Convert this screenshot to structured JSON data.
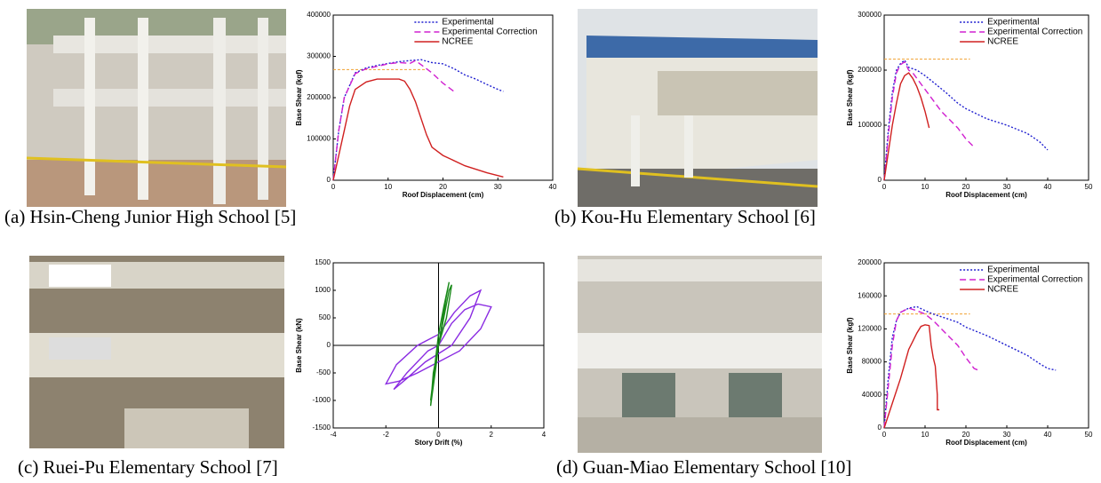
{
  "chart_data": [
    {
      "type": "line",
      "caption": "(a) Hsin-Cheng Junior High School [5]",
      "x_label": "Roof Displacement (cm)",
      "y_label": "Base Shear (kgf)",
      "xlim": [
        0,
        40
      ],
      "xticks": [
        0,
        10,
        20,
        30,
        40
      ],
      "ylim": [
        0,
        400000
      ],
      "yticks": [
        0,
        100000,
        200000,
        300000,
        400000
      ],
      "reference_line": {
        "value": 268000,
        "color": "#f0a030"
      },
      "series": [
        {
          "name": "Experimental",
          "color": "#2020d0",
          "style": "dotted",
          "x": [
            0,
            1,
            2,
            4,
            6,
            8,
            10,
            12,
            14,
            16,
            18,
            20,
            22,
            24,
            26,
            28,
            30,
            31
          ],
          "values": [
            0,
            120000,
            200000,
            260000,
            272000,
            278000,
            283000,
            287000,
            290000,
            292000,
            285000,
            282000,
            270000,
            255000,
            245000,
            232000,
            220000,
            215000
          ]
        },
        {
          "name": "Experimental Correction",
          "color": "#d020d0",
          "style": "dashed",
          "x": [
            0,
            1,
            2,
            4,
            6,
            8,
            10,
            12,
            14,
            15,
            16,
            18,
            20,
            22
          ],
          "values": [
            0,
            120000,
            200000,
            258000,
            270000,
            276000,
            282000,
            285000,
            283000,
            290000,
            280000,
            260000,
            235000,
            215000
          ]
        },
        {
          "name": "NCREE",
          "color": "#d02020",
          "style": "solid",
          "x": [
            0,
            1,
            2,
            3,
            4,
            6,
            8,
            10,
            12,
            13,
            14,
            15,
            16,
            17,
            18,
            20,
            24,
            28,
            31
          ],
          "values": [
            0,
            60000,
            120000,
            180000,
            220000,
            238000,
            245000,
            245000,
            245000,
            240000,
            220000,
            190000,
            150000,
            110000,
            80000,
            60000,
            35000,
            18000,
            8000
          ]
        }
      ]
    },
    {
      "type": "line",
      "caption": "(b) Kou-Hu Elementary School [6]",
      "x_label": "Roof Displacement (cm)",
      "y_label": "Base Shear (kgf)",
      "xlim": [
        0,
        50
      ],
      "xticks": [
        0,
        10,
        20,
        30,
        40,
        50
      ],
      "ylim": [
        0,
        300000
      ],
      "yticks": [
        0,
        100000,
        200000,
        300000
      ],
      "reference_line": {
        "value": 220000,
        "color": "#f0a030"
      },
      "series": [
        {
          "name": "Experimental",
          "color": "#2020d0",
          "style": "dotted",
          "x": [
            0,
            1,
            2,
            3,
            4,
            5,
            6,
            8,
            10,
            12,
            15,
            18,
            20,
            25,
            30,
            35,
            38,
            40
          ],
          "values": [
            0,
            90000,
            160000,
            200000,
            212000,
            218000,
            205000,
            200000,
            190000,
            178000,
            160000,
            140000,
            130000,
            112000,
            100000,
            85000,
            70000,
            55000
          ]
        },
        {
          "name": "Experimental Correction",
          "color": "#d020d0",
          "style": "dashed",
          "x": [
            0,
            1,
            2,
            3,
            4,
            5,
            6,
            7,
            8,
            10,
            12,
            14,
            16,
            18,
            20,
            22
          ],
          "values": [
            0,
            80000,
            150000,
            195000,
            210000,
            215000,
            200000,
            195000,
            185000,
            165000,
            145000,
            125000,
            110000,
            95000,
            75000,
            60000
          ]
        },
        {
          "name": "NCREE",
          "color": "#d02020",
          "style": "solid",
          "x": [
            0,
            1,
            2,
            3,
            4,
            5,
            6,
            7,
            8,
            9,
            10,
            11
          ],
          "values": [
            0,
            50000,
            100000,
            140000,
            175000,
            190000,
            195000,
            185000,
            170000,
            150000,
            125000,
            95000
          ]
        }
      ]
    },
    {
      "type": "line",
      "caption": "(c) Ruei-Pu Elementary School [7]",
      "x_label": "Story Drift (%)",
      "y_label": "Base Shear (kN)",
      "xlim": [
        -4,
        4
      ],
      "xticks": [
        -4,
        -2,
        0,
        2,
        4
      ],
      "ylim": [
        -1500,
        1500
      ],
      "yticks": [
        -1500,
        -1000,
        -500,
        0,
        500,
        1000,
        1500
      ],
      "zero_axes": true,
      "series": [
        {
          "color": "#8a2be2",
          "style": "solid",
          "x": [
            0,
            0.5,
            1,
            1.5,
            2,
            1.6,
            0.8,
            0,
            -0.8,
            -1.5,
            -2,
            -1.6,
            -0.8,
            0,
            0.6,
            1.2,
            1.6,
            1.2,
            0.5,
            -0.5,
            -1.2,
            -1.7,
            -1.2,
            -0.4,
            0
          ],
          "values": [
            0,
            400,
            650,
            750,
            700,
            300,
            -100,
            -300,
            -500,
            -650,
            -700,
            -350,
            0,
            200,
            600,
            900,
            1000,
            500,
            0,
            -300,
            -600,
            -800,
            -500,
            -100,
            0
          ]
        },
        {
          "color": "#1a8a1a",
          "style": "solid",
          "x": [
            0,
            0.1,
            0.2,
            0.3,
            0.4,
            0.2,
            0,
            -0.1,
            -0.2,
            -0.3,
            -0.2,
            0,
            0.2,
            0.4,
            0.5,
            0.3,
            0,
            -0.2,
            -0.3,
            -0.1,
            0
          ],
          "values": [
            0,
            300,
            600,
            900,
            1150,
            700,
            200,
            -200,
            -600,
            -1000,
            -600,
            0,
            500,
            1000,
            1100,
            500,
            0,
            -500,
            -1100,
            -400,
            0
          ]
        }
      ]
    },
    {
      "type": "line",
      "caption": "(d) Guan-Miao Elementary School [10]",
      "x_label": "Roof Displacement (cm)",
      "y_label": "Base Shear (kgf)",
      "xlim": [
        0,
        50
      ],
      "xticks": [
        0,
        10,
        20,
        30,
        40,
        50
      ],
      "ylim": [
        0,
        200000
      ],
      "yticks": [
        0,
        40000,
        80000,
        120000,
        160000,
        200000
      ],
      "reference_line": {
        "value": 138000,
        "color": "#f0a030"
      },
      "series": [
        {
          "name": "Experimental",
          "color": "#2020d0",
          "style": "dotted",
          "x": [
            0,
            1,
            2,
            3,
            4,
            6,
            8,
            10,
            12,
            15,
            18,
            20,
            25,
            30,
            35,
            38,
            40,
            42
          ],
          "values": [
            0,
            60000,
            110000,
            130000,
            140000,
            145000,
            147000,
            142000,
            138000,
            133000,
            128000,
            122000,
            112000,
            100000,
            88000,
            78000,
            72000,
            70000
          ]
        },
        {
          "name": "Experimental Correction",
          "color": "#d020d0",
          "style": "dashed",
          "x": [
            0,
            1,
            2,
            3,
            4,
            6,
            8,
            10,
            12,
            14,
            16,
            18,
            20,
            22,
            23
          ],
          "values": [
            0,
            50000,
            100000,
            130000,
            140000,
            145000,
            142000,
            138000,
            130000,
            120000,
            110000,
            100000,
            85000,
            72000,
            70000
          ]
        },
        {
          "name": "NCREE",
          "color": "#d02020",
          "style": "solid",
          "x": [
            0,
            2,
            4,
            6,
            7,
            8,
            9,
            10,
            11,
            11.5,
            12,
            12.5,
            13,
            13,
            13.5
          ],
          "values": [
            0,
            30000,
            60000,
            95000,
            105000,
            115000,
            123000,
            125000,
            124000,
            100000,
            85000,
            75000,
            40000,
            22000,
            22000
          ]
        }
      ]
    }
  ]
}
